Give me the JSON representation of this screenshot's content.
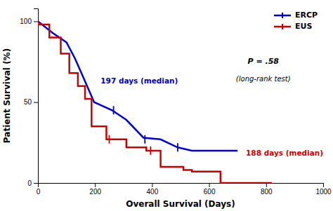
{
  "chart_data": {
    "type": "line",
    "x_label": "Overall Survival (Days)",
    "y_label": "Patient Survival (%)",
    "series": [
      {
        "name": "ERCP",
        "color": "#0000cc",
        "x": [
          0,
          0,
          50,
          50,
          100,
          100,
          130,
          130,
          160,
          160,
          197,
          197,
          260,
          260,
          310,
          310,
          370,
          370,
          430,
          430,
          490,
          490,
          540,
          540,
          580,
          580,
          640,
          640,
          700,
          700
        ],
        "values": [
          100,
          100,
          93,
          93,
          87,
          87,
          77,
          77,
          65,
          65,
          50,
          50,
          45,
          45,
          39,
          39,
          28,
          28,
          27,
          27,
          22,
          22,
          20,
          20,
          20,
          20,
          20,
          20,
          20,
          20
        ],
        "censor_x": [
          265,
          375,
          490
        ],
        "censor_y": [
          45,
          27,
          22
        ]
      },
      {
        "name": "EUS",
        "color": "#cc0000",
        "x": [
          0,
          0,
          40,
          40,
          80,
          80,
          110,
          110,
          140,
          140,
          165,
          165,
          188,
          188,
          240,
          240,
          310,
          310,
          380,
          380,
          430,
          430,
          510,
          510,
          540,
          540,
          580,
          580,
          640,
          640,
          820,
          820
        ],
        "values": [
          100,
          98,
          98,
          90,
          90,
          80,
          80,
          68,
          68,
          60,
          60,
          52,
          52,
          35,
          35,
          27,
          27,
          22,
          22,
          20,
          20,
          10,
          10,
          8,
          8,
          7,
          7,
          7,
          7,
          0,
          0,
          0
        ],
        "censor_x": [
          250,
          395
        ],
        "censor_y": [
          27,
          20
        ]
      }
    ],
    "annotations": [
      {
        "text": "197 days (median)",
        "color": "#0000cc"
      },
      {
        "text": "188 days (median)",
        "color": "#cc0000"
      },
      {
        "text": "P = .58",
        "color": "#000000"
      },
      {
        "text": "(long-rank test)",
        "color": "#000000"
      }
    ],
    "xlim": [
      0,
      1000
    ],
    "ylim": [
      0,
      108
    ],
    "xticks": [
      0,
      200,
      400,
      600,
      800,
      1000
    ],
    "yticks": [
      0,
      50,
      100
    ],
    "legend": "upper right",
    "grid": false
  }
}
